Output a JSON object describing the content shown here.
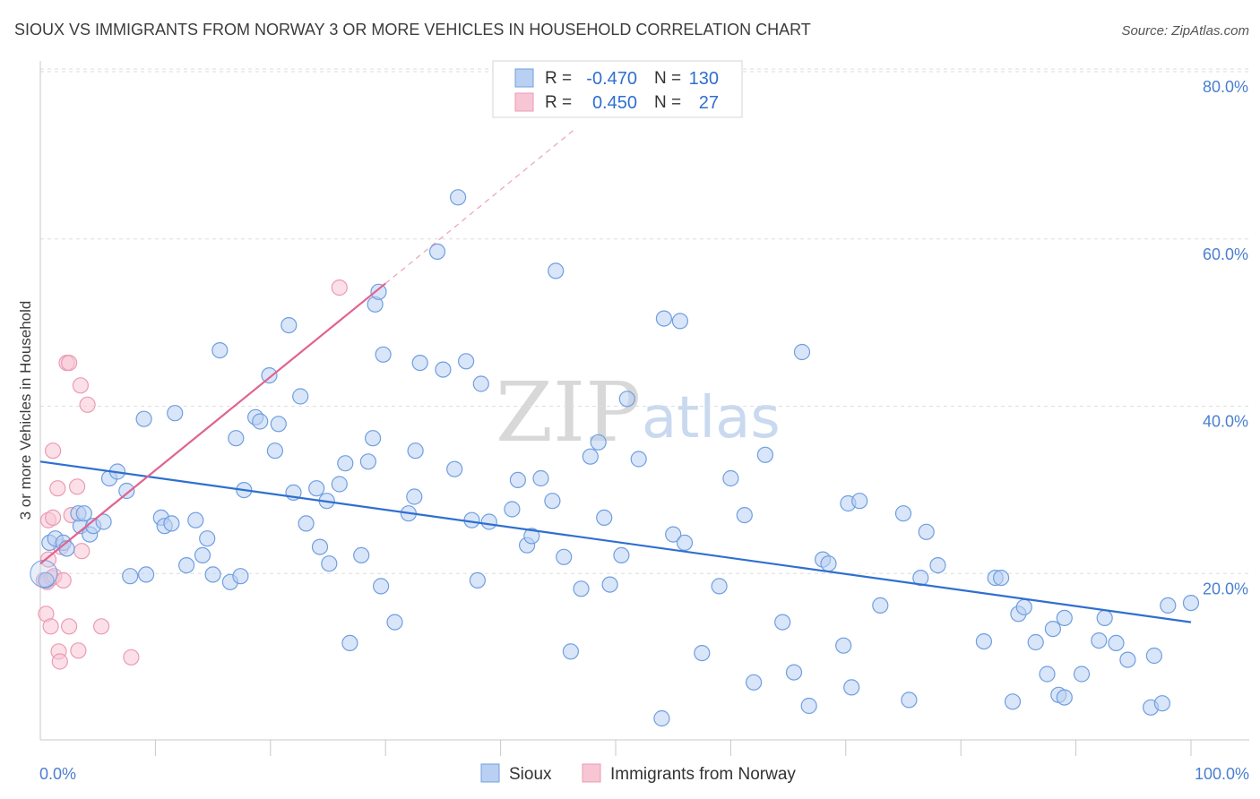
{
  "chart_data": {
    "type": "scatter",
    "title": "SIOUX VS IMMIGRANTS FROM NORWAY 3 OR MORE VEHICLES IN HOUSEHOLD CORRELATION CHART",
    "source": "Source: ZipAtlas.com",
    "xlabel": "",
    "ylabel": "3 or more Vehicles in Household",
    "xlim": [
      0,
      100
    ],
    "ylim": [
      0,
      82
    ],
    "x_tick_labels": [
      "0.0%",
      "100.0%"
    ],
    "y_ticks": [
      20,
      40,
      60,
      80
    ],
    "y_tick_labels": [
      "20.0%",
      "40.0%",
      "60.0%",
      "80.0%"
    ],
    "watermark": {
      "zip": "ZIP",
      "atlas": "atlas"
    },
    "legend": {
      "rows": [
        {
          "r_label": "R =",
          "r_value": "-0.470",
          "n_label": "N =",
          "n_value": "130"
        },
        {
          "r_label": "R =",
          "r_value": "0.450",
          "n_label": "N =",
          "n_value": "27"
        }
      ]
    },
    "bottom_legend": [
      "Sioux",
      "Immigrants from Norway"
    ],
    "series": [
      {
        "name": "Sioux",
        "color": "#6f9fe0",
        "fill": "#b9d0f2",
        "trend_color": "#2f6fd0",
        "trend": {
          "x": [
            0,
            100
          ],
          "y": [
            35.2,
            16.0
          ]
        },
        "points": [
          [
            0.5,
            21.0
          ],
          [
            0.8,
            25.5
          ],
          [
            1.3,
            26.0
          ],
          [
            2.0,
            25.5
          ],
          [
            2.3,
            24.8
          ],
          [
            3.5,
            27.5
          ],
          [
            3.3,
            29.0
          ],
          [
            3.8,
            29.0
          ],
          [
            4.3,
            26.5
          ],
          [
            4.6,
            27.5
          ],
          [
            5.5,
            28.0
          ],
          [
            6.0,
            33.2
          ],
          [
            6.7,
            34.0
          ],
          [
            7.5,
            31.7
          ],
          [
            7.8,
            21.5
          ],
          [
            9.2,
            21.7
          ],
          [
            9.0,
            40.3
          ],
          [
            10.5,
            28.5
          ],
          [
            10.8,
            27.5
          ],
          [
            11.4,
            27.8
          ],
          [
            11.7,
            41.0
          ],
          [
            12.7,
            22.8
          ],
          [
            13.5,
            28.2
          ],
          [
            14.1,
            24.0
          ],
          [
            14.5,
            26.0
          ],
          [
            15.0,
            21.7
          ],
          [
            15.6,
            48.5
          ],
          [
            16.5,
            20.8
          ],
          [
            17.0,
            38.0
          ],
          [
            17.4,
            21.5
          ],
          [
            17.7,
            31.8
          ],
          [
            18.7,
            40.5
          ],
          [
            19.1,
            40.0
          ],
          [
            19.9,
            45.5
          ],
          [
            20.4,
            36.5
          ],
          [
            20.7,
            39.7
          ],
          [
            21.6,
            51.5
          ],
          [
            22.0,
            31.5
          ],
          [
            22.6,
            43.0
          ],
          [
            23.1,
            27.8
          ],
          [
            24.0,
            32.0
          ],
          [
            24.3,
            25.0
          ],
          [
            24.9,
            30.5
          ],
          [
            25.1,
            23.0
          ],
          [
            26.0,
            32.5
          ],
          [
            26.5,
            35.0
          ],
          [
            26.9,
            13.5
          ],
          [
            27.9,
            24.0
          ],
          [
            28.5,
            35.2
          ],
          [
            28.9,
            38.0
          ],
          [
            29.1,
            54.0
          ],
          [
            29.6,
            20.3
          ],
          [
            29.4,
            55.5
          ],
          [
            29.8,
            48.0
          ],
          [
            30.8,
            16.0
          ],
          [
            32.0,
            29.0
          ],
          [
            32.5,
            31.0
          ],
          [
            32.6,
            36.5
          ],
          [
            33.0,
            47.0
          ],
          [
            34.5,
            60.3
          ],
          [
            35.0,
            46.2
          ],
          [
            36.0,
            34.3
          ],
          [
            36.3,
            66.8
          ],
          [
            37.0,
            47.2
          ],
          [
            37.5,
            28.2
          ],
          [
            38.0,
            21.0
          ],
          [
            38.3,
            44.5
          ],
          [
            39.0,
            28.0
          ],
          [
            41.0,
            29.5
          ],
          [
            41.5,
            33.0
          ],
          [
            42.3,
            25.2
          ],
          [
            42.7,
            26.3
          ],
          [
            43.5,
            33.2
          ],
          [
            44.5,
            30.5
          ],
          [
            44.8,
            58.0
          ],
          [
            45.5,
            23.8
          ],
          [
            46.1,
            12.5
          ],
          [
            47.0,
            20.0
          ],
          [
            47.8,
            35.8
          ],
          [
            48.5,
            37.5
          ],
          [
            49.0,
            28.5
          ],
          [
            49.5,
            20.5
          ],
          [
            50.5,
            24.0
          ],
          [
            51.0,
            42.7
          ],
          [
            52.0,
            35.5
          ],
          [
            54.0,
            4.5
          ],
          [
            54.2,
            52.3
          ],
          [
            55.0,
            26.5
          ],
          [
            55.6,
            52.0
          ],
          [
            56.0,
            25.5
          ],
          [
            57.5,
            12.3
          ],
          [
            59.0,
            20.3
          ],
          [
            60.0,
            33.2
          ],
          [
            61.2,
            28.8
          ],
          [
            62.0,
            8.8
          ],
          [
            63.0,
            36.0
          ],
          [
            64.5,
            16.0
          ],
          [
            65.5,
            10.0
          ],
          [
            66.2,
            48.3
          ],
          [
            66.8,
            6.0
          ],
          [
            68.0,
            23.5
          ],
          [
            68.5,
            23.0
          ],
          [
            69.8,
            13.2
          ],
          [
            70.2,
            30.2
          ],
          [
            70.5,
            8.2
          ],
          [
            71.2,
            30.5
          ],
          [
            73.0,
            18.0
          ],
          [
            75.0,
            29.0
          ],
          [
            75.5,
            6.7
          ],
          [
            76.5,
            21.3
          ],
          [
            77.0,
            26.8
          ],
          [
            78.0,
            22.8
          ],
          [
            82.0,
            13.7
          ],
          [
            83.0,
            21.3
          ],
          [
            83.5,
            21.3
          ],
          [
            84.5,
            6.5
          ],
          [
            85.0,
            17.0
          ],
          [
            85.5,
            17.8
          ],
          [
            86.5,
            13.6
          ],
          [
            87.5,
            9.8
          ],
          [
            88.0,
            15.2
          ],
          [
            88.5,
            7.3
          ],
          [
            89.0,
            7.0
          ],
          [
            89.0,
            16.5
          ],
          [
            90.5,
            9.8
          ],
          [
            92.0,
            13.8
          ],
          [
            92.5,
            16.5
          ],
          [
            93.5,
            13.5
          ],
          [
            94.5,
            11.5
          ],
          [
            96.5,
            5.8
          ],
          [
            96.8,
            12.0
          ],
          [
            97.5,
            6.3
          ],
          [
            98.0,
            18.0
          ],
          [
            100.0,
            18.3
          ]
        ]
      },
      {
        "name": "Immigrants from Norway",
        "color": "#ec9ab5",
        "fill": "#f7c6d5",
        "trend_color": "#e0638e",
        "trend": {
          "x": [
            0,
            30
          ],
          "y": [
            23.0,
            56.5
          ]
        },
        "trend_dashed": {
          "x": [
            30,
            46.5
          ],
          "y": [
            56.5,
            75.0
          ]
        },
        "points": [
          [
            0.3,
            21.0
          ],
          [
            0.5,
            17.0
          ],
          [
            0.6,
            20.8
          ],
          [
            0.7,
            23.5
          ],
          [
            0.7,
            28.2
          ],
          [
            0.9,
            15.5
          ],
          [
            1.0,
            21.3
          ],
          [
            1.1,
            36.5
          ],
          [
            1.1,
            28.5
          ],
          [
            1.2,
            21.5
          ],
          [
            1.5,
            32.0
          ],
          [
            1.6,
            12.5
          ],
          [
            1.7,
            11.3
          ],
          [
            1.8,
            25.0
          ],
          [
            2.0,
            21.0
          ],
          [
            2.3,
            47.0
          ],
          [
            2.5,
            47.0
          ],
          [
            2.5,
            15.5
          ],
          [
            2.7,
            28.8
          ],
          [
            3.2,
            32.2
          ],
          [
            3.3,
            12.6
          ],
          [
            3.5,
            44.3
          ],
          [
            3.6,
            24.5
          ],
          [
            4.1,
            42.0
          ],
          [
            5.3,
            15.5
          ],
          [
            7.9,
            11.8
          ],
          [
            26.0,
            56.0
          ]
        ]
      }
    ]
  }
}
